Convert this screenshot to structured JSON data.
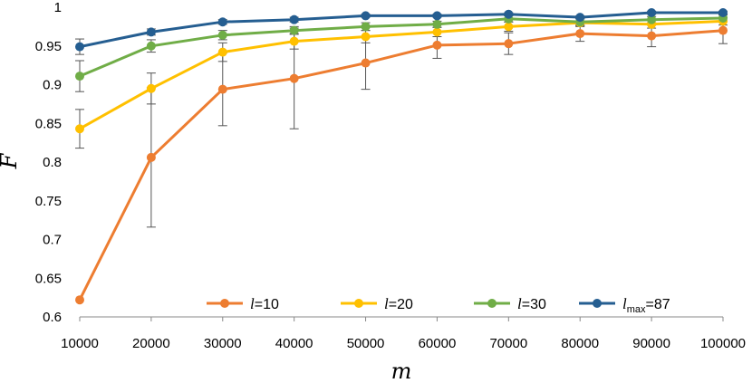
{
  "chart_data": {
    "type": "line",
    "title": "",
    "xlabel": "m",
    "ylabel": "F",
    "x": [
      10000,
      20000,
      30000,
      40000,
      50000,
      60000,
      70000,
      80000,
      90000,
      100000
    ],
    "x_tick_labels": [
      "10000",
      "20000",
      "30000",
      "40000",
      "50000",
      "60000",
      "70000",
      "80000",
      "90000",
      "100000"
    ],
    "ylim": [
      0.6,
      1.0
    ],
    "y_ticks": [
      0.6,
      0.65,
      0.7,
      0.75,
      0.8,
      0.85,
      0.9,
      0.95,
      1.0
    ],
    "y_tick_labels": [
      "0.6",
      "0.65",
      "0.7",
      "0.75",
      "0.8",
      "0.85",
      "0.9",
      "0.95",
      "1"
    ],
    "grid": false,
    "legend_position": "bottom-inside",
    "series": [
      {
        "name": "l=10",
        "legend_italic": "l",
        "legend_sub": "",
        "legend_rest": "=10",
        "color": "#ED7D31",
        "values": [
          0.622,
          0.806,
          0.894,
          0.908,
          0.928,
          0.951,
          0.953,
          0.966,
          0.963,
          0.97
        ],
        "error": [
          0.0,
          0.09,
          0.047,
          0.065,
          0.034,
          0.017,
          0.014,
          0.01,
          0.014,
          0.017
        ]
      },
      {
        "name": "l=20",
        "legend_italic": "l",
        "legend_sub": "",
        "legend_rest": "=20",
        "color": "#FFC000",
        "values": [
          0.843,
          0.895,
          0.942,
          0.956,
          0.962,
          0.968,
          0.975,
          0.98,
          0.978,
          0.982
        ],
        "error": [
          0.025,
          0.02,
          0.012,
          0.01,
          0.008,
          0.006,
          0.006,
          0.005,
          0.005,
          0.005
        ]
      },
      {
        "name": "l=30",
        "legend_italic": "l",
        "legend_sub": "",
        "legend_rest": "=30",
        "color": "#70AD47",
        "values": [
          0.911,
          0.95,
          0.964,
          0.97,
          0.975,
          0.978,
          0.985,
          0.981,
          0.984,
          0.986
        ],
        "error": [
          0.02,
          0.008,
          0.006,
          0.005,
          0.005,
          0.004,
          0.004,
          0.004,
          0.004,
          0.004
        ]
      },
      {
        "name": "l_max=87",
        "legend_italic": "l",
        "legend_sub": "max",
        "legend_rest": "=87",
        "color": "#255E91",
        "values": [
          0.949,
          0.968,
          0.981,
          0.984,
          0.989,
          0.989,
          0.991,
          0.987,
          0.993,
          0.993
        ],
        "error": [
          0.01,
          0.004,
          0.003,
          0.003,
          0.002,
          0.002,
          0.002,
          0.002,
          0.002,
          0.002
        ]
      }
    ]
  }
}
